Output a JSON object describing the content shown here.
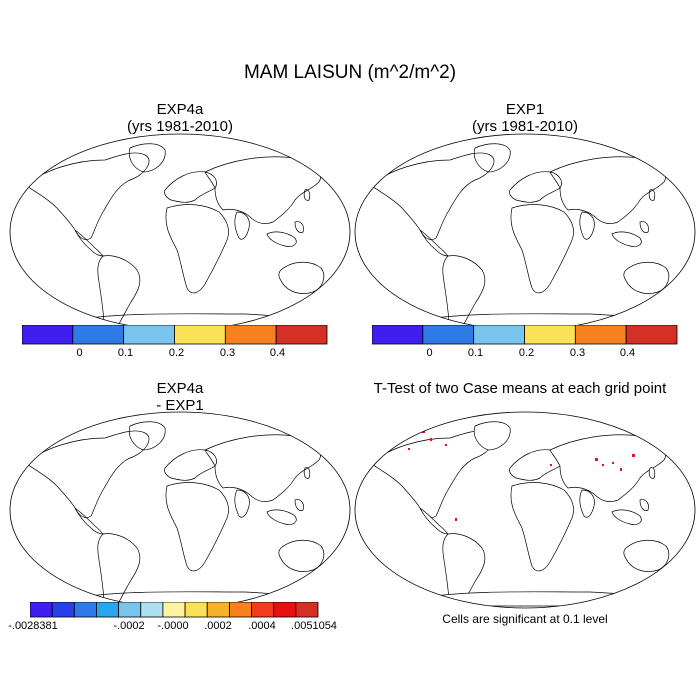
{
  "title": "MAM LAISUN (m^2/m^2)",
  "panels": [
    {
      "id": "exp4a",
      "title_line1": "EXP4a",
      "title_line2": "(yrs 1981-2010)"
    },
    {
      "id": "exp1",
      "title_line1": "EXP1",
      "title_line2": "(yrs 1981-2010)"
    },
    {
      "id": "diff",
      "title_line1": "EXP4a",
      "title_line2": "- EXP1"
    },
    {
      "id": "ttest",
      "title_line1": "T-Test of two Case means at each grid point",
      "title_line2": ""
    }
  ],
  "colorbar_main": {
    "colors": [
      "#3f1ff0",
      "#2e7be8",
      "#79c4ec",
      "#fbe155",
      "#f7801f",
      "#d43025"
    ],
    "labels": [
      "0",
      "0.1",
      "0.2",
      "0.3",
      "0.4"
    ]
  },
  "colorbar_diff": {
    "colors": [
      "#3f1ff0",
      "#2740e8",
      "#2e7be8",
      "#25a8f0",
      "#79c4ec",
      "#aee0f0",
      "#fff3a0",
      "#fbe155",
      "#f7b22a",
      "#f7801f",
      "#f33a1c",
      "#e80f0f",
      "#d43025"
    ],
    "labels": [
      "-.0028381",
      "-.0002",
      "-.0000",
      ".0002",
      ".0004",
      ".0051054"
    ]
  },
  "significance_note": "Cells are significant at 0.1 level",
  "colors": {
    "land_diff": "#fff3a0",
    "ocean": "#ffffff",
    "significant": "#e8101a"
  }
}
